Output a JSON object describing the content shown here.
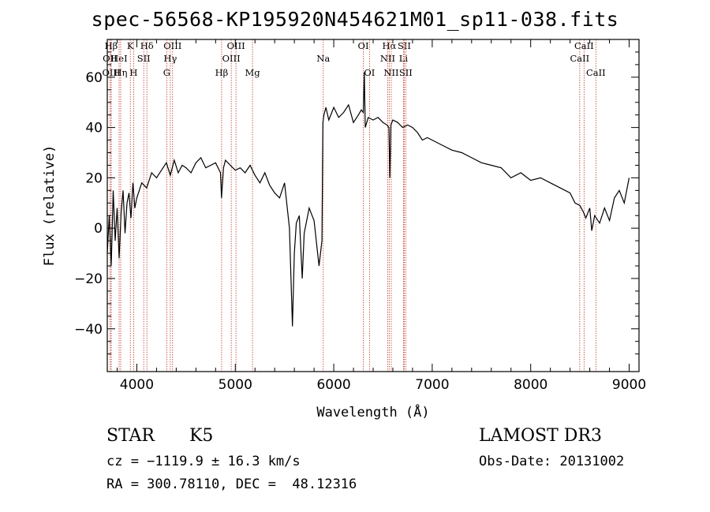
{
  "chart_data": {
    "type": "line",
    "title": "spec-56568-KP195920N454621M01_sp11-038.fits",
    "xlabel": "Wavelength (Å)",
    "ylabel": "Flux (relative)",
    "xlim": [
      3700,
      9100
    ],
    "ylim": [
      -57,
      75
    ],
    "xticks": [
      4000,
      5000,
      6000,
      7000,
      8000,
      9000
    ],
    "yticks": [
      -40,
      -20,
      0,
      20,
      40,
      60
    ],
    "grid": false,
    "series": [
      {
        "color": "#000000",
        "x": [
          3700,
          3720,
          3740,
          3760,
          3780,
          3800,
          3820,
          3840,
          3860,
          3880,
          3900,
          3920,
          3940,
          3960,
          3980,
          4000,
          4050,
          4100,
          4150,
          4200,
          4250,
          4300,
          4340,
          4380,
          4420,
          4460,
          4500,
          4550,
          4600,
          4650,
          4700,
          4750,
          4800,
          4850,
          4860,
          4880,
          4900,
          4950,
          5000,
          5050,
          5100,
          5150,
          5200,
          5250,
          5300,
          5350,
          5400,
          5450,
          5500,
          5550,
          5580,
          5600,
          5620,
          5650,
          5680,
          5700,
          5750,
          5800,
          5850,
          5880,
          5890,
          5900,
          5920,
          5950,
          6000,
          6050,
          6100,
          6150,
          6200,
          6250,
          6280,
          6300,
          6310,
          6320,
          6350,
          6400,
          6450,
          6500,
          6540,
          6560,
          6570,
          6580,
          6600,
          6650,
          6700,
          6750,
          6800,
          6850,
          6900,
          6950,
          7000,
          7100,
          7200,
          7300,
          7400,
          7500,
          7600,
          7700,
          7800,
          7900,
          8000,
          8100,
          8200,
          8300,
          8400,
          8450,
          8500,
          8540,
          8560,
          8600,
          8620,
          8650,
          8700,
          8750,
          8800,
          8850,
          8900,
          8950,
          9000
        ],
        "y": [
          -10,
          5,
          -15,
          15,
          -5,
          8,
          -12,
          6,
          15,
          -2,
          10,
          14,
          4,
          18,
          8,
          12,
          18,
          16,
          22,
          20,
          23,
          26,
          21,
          27,
          22,
          25,
          24,
          22,
          26,
          28,
          24,
          25,
          26,
          22,
          12,
          24,
          27,
          25,
          23,
          24,
          22,
          25,
          21,
          18,
          22,
          17,
          14,
          12,
          18,
          0,
          -39,
          -10,
          2,
          5,
          -20,
          -2,
          8,
          3,
          -15,
          -5,
          42,
          45,
          48,
          43,
          48,
          44,
          46,
          49,
          42,
          45,
          47,
          46,
          62,
          40,
          44,
          43,
          44,
          42,
          41,
          40,
          20,
          41,
          43,
          42,
          40,
          41,
          40,
          38,
          35,
          36,
          35,
          33,
          31,
          30,
          28,
          26,
          25,
          24,
          20,
          22,
          19,
          20,
          18,
          16,
          14,
          10,
          9,
          6,
          4,
          8,
          -1,
          5,
          2,
          8,
          3,
          12,
          15,
          10,
          20
        ]
      }
    ],
    "lines": [
      {
        "label": "Hβ",
        "x": 3740,
        "row": 1
      },
      {
        "label": "OII",
        "x": 3727,
        "row": 2
      },
      {
        "label": "OIII",
        "x": 3740,
        "row": 3
      },
      {
        "label": "K",
        "x": 3934,
        "row": 1
      },
      {
        "label": "HeI",
        "x": 3820,
        "row": 2
      },
      {
        "label": "Hη",
        "x": 3836,
        "row": 3
      },
      {
        "label": "H",
        "x": 3968,
        "row": 3
      },
      {
        "label": "Hδ",
        "x": 4102,
        "row": 1
      },
      {
        "label": "SII",
        "x": 4070,
        "row": 2
      },
      {
        "label": "OIII",
        "x": 4363,
        "row": 1
      },
      {
        "label": "Hγ",
        "x": 4340,
        "row": 2
      },
      {
        "label": "G",
        "x": 4304,
        "row": 3
      },
      {
        "label": "OIII",
        "x": 5007,
        "row": 1
      },
      {
        "label": "OIII",
        "x": 4959,
        "row": 2
      },
      {
        "label": "Hβ",
        "x": 4861,
        "row": 3
      },
      {
        "label": "Mg",
        "x": 5175,
        "row": 3
      },
      {
        "label": "Na",
        "x": 5893,
        "row": 2
      },
      {
        "label": "OI",
        "x": 6300,
        "row": 1
      },
      {
        "label": "OI",
        "x": 6363,
        "row": 3
      },
      {
        "label": "Hα",
        "x": 6563,
        "row": 1
      },
      {
        "label": "NII",
        "x": 6548,
        "row": 2
      },
      {
        "label": "NII",
        "x": 6584,
        "row": 3
      },
      {
        "label": "SII",
        "x": 6716,
        "row": 1
      },
      {
        "label": "Li",
        "x": 6708,
        "row": 2
      },
      {
        "label": "SII",
        "x": 6731,
        "row": 3
      },
      {
        "label": "CaII",
        "x": 8542,
        "row": 1
      },
      {
        "label": "CaII",
        "x": 8498,
        "row": 2
      },
      {
        "label": "CaII",
        "x": 8662,
        "row": 3
      }
    ]
  },
  "info": {
    "class": "STAR",
    "subclass": "K5",
    "survey": "LAMOST DR3",
    "cz": "cz = −1119.9 ± 16.3 km/s",
    "obs_date": "Obs-Date: 20131002",
    "radec": "RA = 300.78110, DEC =  48.12316"
  },
  "colors": {
    "line_marker": "#c0392b",
    "spectrum": "#000000"
  }
}
